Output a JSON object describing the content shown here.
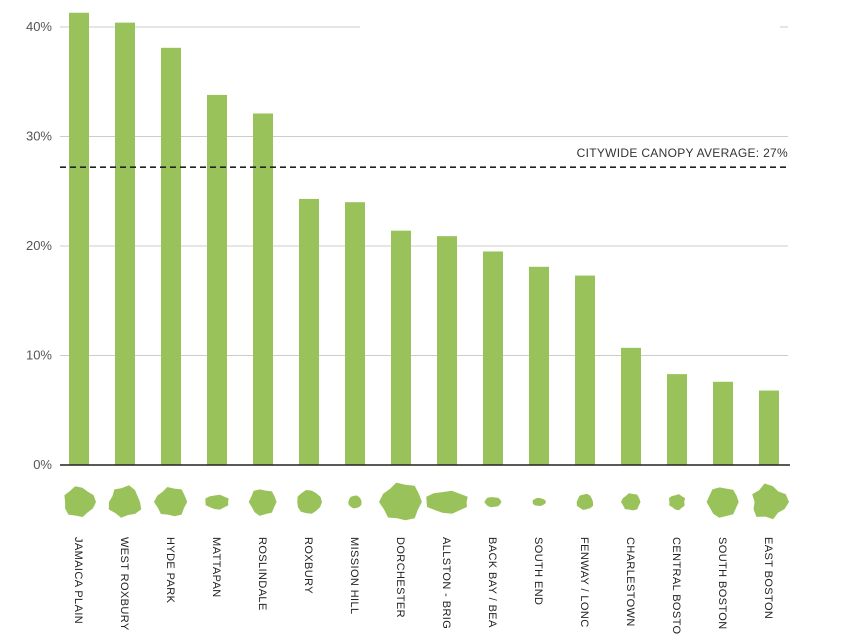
{
  "chart_data": {
    "type": "bar",
    "categories": [
      "JAMAICA PLAIN",
      "WEST ROXBURY",
      "HYDE PARK",
      "MATTAPAN",
      "ROSLINDALE",
      "ROXBURY",
      "MISSION HILL",
      "DORCHESTER",
      "ALLSTON - BRIGHTON",
      "BACK BAY / BEACON HILL",
      "SOUTH END",
      "FENWAY / LONGWOOD",
      "CHARLESTOWN",
      "CENTRAL BOSTON",
      "SOUTH BOSTON",
      "EAST BOSTON"
    ],
    "visible_labels": [
      "JAMAICA PLAIN",
      "WEST ROXBURY",
      "HYDE PARK",
      "MATTAPAN",
      "ROSLINDALE",
      "ROXBURY",
      "MISSION HILL",
      "DORCHESTER",
      "ALLSTON - BRIG",
      "BACK BAY / BEA",
      "SOUTH END",
      "FENWAY / LONC",
      "CHARLESTOWN",
      "CENTRAL BOSTO",
      "SOUTH BOSTON",
      "EAST BOSTON"
    ],
    "values": [
      41.3,
      40.4,
      38.1,
      33.8,
      32.1,
      24.3,
      24.0,
      21.4,
      20.9,
      19.5,
      18.1,
      17.3,
      10.7,
      8.3,
      7.6,
      6.8
    ],
    "ylim": [
      0,
      42
    ],
    "yticks": [
      0,
      10,
      20,
      30,
      40
    ],
    "ytick_labels": [
      "0%",
      "10%",
      "20%",
      "30%",
      "40%"
    ],
    "reference_line": {
      "value": 27.2,
      "label": "CITYWIDE CANOPY AVERAGE: 27%",
      "style": "dashed"
    },
    "title": "",
    "xlabel": "",
    "ylabel": "",
    "grid": true
  },
  "colors": {
    "bar": "#99c25b",
    "grid": "#cccccc",
    "axis": "#222222",
    "reference": "#222222"
  },
  "icons": [
    "jamaica-plain-map-icon",
    "west-roxbury-map-icon",
    "hyde-park-map-icon",
    "mattapan-map-icon",
    "roslindale-map-icon",
    "roxbury-map-icon",
    "mission-hill-map-icon",
    "dorchester-map-icon",
    "allston-brighton-map-icon",
    "back-bay-map-icon",
    "south-end-map-icon",
    "fenway-map-icon",
    "charlestown-map-icon",
    "central-boston-map-icon",
    "south-boston-map-icon",
    "east-boston-map-icon"
  ]
}
